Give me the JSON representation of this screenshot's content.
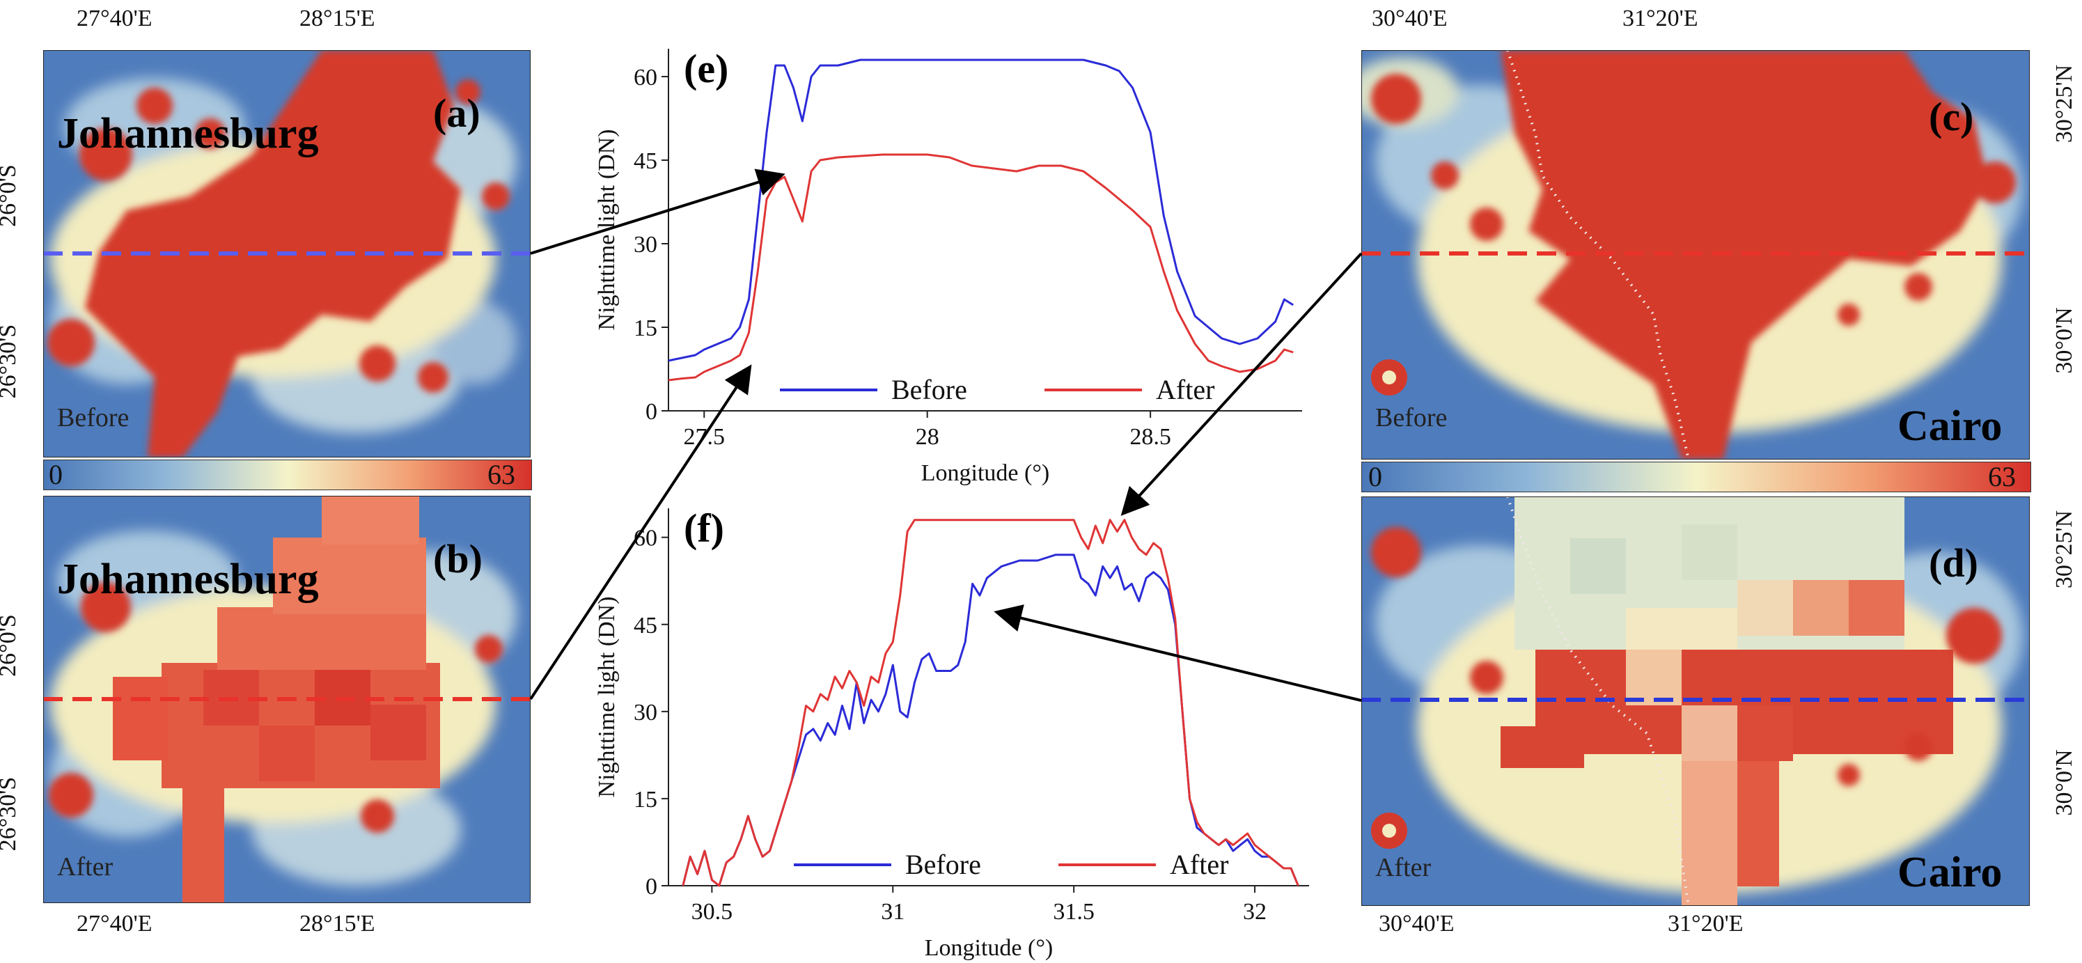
{
  "colorbar": {
    "min": "0",
    "max": "63"
  },
  "maps": {
    "a": {
      "label": "(a)",
      "city": "Johannesburg",
      "state": "Before",
      "top_ticks": [
        "27°40'E",
        "28°15'E"
      ],
      "left_ticks": [
        "26°0'S",
        "26°30'S"
      ]
    },
    "b": {
      "label": "(b)",
      "city": "Johannesburg",
      "state": "After",
      "bottom_ticks": [
        "27°40'E",
        "28°15'E"
      ],
      "left_ticks": [
        "26°0'S",
        "26°30'S"
      ]
    },
    "c": {
      "label": "(c)",
      "city": "Cairo",
      "state": "Before",
      "top_ticks": [
        "30°40'E",
        "31°20'E"
      ],
      "right_ticks": [
        "30°25'N",
        "30°0'N"
      ]
    },
    "d": {
      "label": "(d)",
      "city": "Cairo",
      "state": "After",
      "bottom_ticks": [
        "30°40'E",
        "31°20'E"
      ],
      "right_ticks": [
        "30°25'N",
        "30°0'N"
      ]
    }
  },
  "chart_data": [
    {
      "id": "e",
      "type": "line",
      "panel_label": "(e)",
      "xlabel": "Longitude (°)",
      "ylabel": "Nighttime light (DN)",
      "xlim": [
        27.42,
        28.84
      ],
      "ylim": [
        0,
        65
      ],
      "xticks": [
        27.5,
        28,
        28.5
      ],
      "xtick_labels": [
        "27.5",
        "28",
        "28.5"
      ],
      "yticks": [
        0,
        15,
        30,
        45,
        60
      ],
      "ytick_labels": [
        "0",
        "15",
        "30",
        "45",
        "60"
      ],
      "legend": [
        "Before",
        "After"
      ],
      "series": [
        {
          "name": "Before",
          "color": "#2b2bd8",
          "x": [
            27.42,
            27.45,
            27.48,
            27.5,
            27.53,
            27.56,
            27.58,
            27.6,
            27.62,
            27.64,
            27.66,
            27.68,
            27.7,
            27.72,
            27.74,
            27.76,
            27.8,
            27.85,
            28.0,
            28.2,
            28.35,
            28.4,
            28.43,
            28.46,
            28.5,
            28.53,
            28.56,
            28.6,
            28.63,
            28.66,
            28.7,
            28.74,
            28.78,
            28.8,
            28.82
          ],
          "values": [
            9,
            9.5,
            10,
            11,
            12,
            13,
            15,
            20,
            35,
            50,
            62,
            62,
            58,
            52,
            60,
            62,
            62,
            63,
            63,
            63,
            63,
            62,
            61,
            58,
            50,
            35,
            25,
            17,
            15,
            13,
            12,
            13,
            16,
            20,
            19
          ]
        },
        {
          "name": "After",
          "color": "#e03535",
          "x": [
            27.42,
            27.45,
            27.48,
            27.5,
            27.53,
            27.56,
            27.58,
            27.6,
            27.62,
            27.64,
            27.66,
            27.68,
            27.7,
            27.72,
            27.74,
            27.76,
            27.8,
            27.9,
            28.0,
            28.05,
            28.1,
            28.2,
            28.25,
            28.3,
            28.35,
            28.4,
            28.43,
            28.46,
            28.5,
            28.53,
            28.56,
            28.6,
            28.63,
            28.66,
            28.7,
            28.74,
            28.78,
            28.8,
            28.82
          ],
          "values": [
            5.5,
            5.8,
            6,
            7,
            8,
            9,
            10,
            14,
            25,
            38,
            41,
            42,
            38,
            34,
            43,
            45,
            45.5,
            46,
            46,
            45.5,
            44,
            43,
            44,
            44,
            43,
            40,
            38,
            36,
            33,
            25,
            18,
            12,
            9,
            8,
            7,
            7.5,
            9,
            11,
            10.5
          ]
        }
      ]
    },
    {
      "id": "f",
      "type": "line",
      "panel_label": "(f)",
      "xlabel": "Longitude (°)",
      "ylabel": "Nighttime light (DN)",
      "xlim": [
        30.38,
        32.15
      ],
      "ylim": [
        0,
        65
      ],
      "xticks": [
        30.5,
        31,
        31.5,
        32
      ],
      "xtick_labels": [
        "30.5",
        "31",
        "31.5",
        "32"
      ],
      "yticks": [
        0,
        15,
        30,
        45,
        60
      ],
      "ytick_labels": [
        "0",
        "15",
        "30",
        "45",
        "60"
      ],
      "legend": [
        "Before",
        "After"
      ],
      "series": [
        {
          "name": "Before",
          "color": "#2b2bd8",
          "x": [
            30.42,
            30.44,
            30.46,
            30.48,
            30.5,
            30.52,
            30.54,
            30.56,
            30.58,
            30.6,
            30.62,
            30.64,
            30.66,
            30.68,
            30.7,
            30.72,
            30.74,
            30.76,
            30.78,
            30.8,
            30.82,
            30.84,
            30.86,
            30.88,
            30.9,
            30.92,
            30.94,
            30.96,
            30.98,
            31.0,
            31.02,
            31.04,
            31.06,
            31.08,
            31.1,
            31.12,
            31.14,
            31.16,
            31.18,
            31.2,
            31.22,
            31.24,
            31.26,
            31.28,
            31.3,
            31.35,
            31.4,
            31.45,
            31.5,
            31.52,
            31.54,
            31.56,
            31.58,
            31.6,
            31.62,
            31.64,
            31.66,
            31.68,
            31.7,
            31.72,
            31.74,
            31.76,
            31.78,
            31.8,
            31.82,
            31.84,
            31.86,
            31.88,
            31.9,
            31.92,
            31.94,
            31.96,
            31.98,
            32.0,
            32.02,
            32.04,
            32.06,
            32.08,
            32.1,
            32.12
          ],
          "values": [
            0,
            5,
            2,
            6,
            1,
            0,
            4,
            5,
            8,
            12,
            8,
            5,
            6,
            10,
            14,
            18,
            22,
            26,
            27,
            25,
            28,
            26,
            31,
            27,
            35,
            28,
            32,
            30,
            33,
            38,
            30,
            29,
            35,
            39,
            40,
            37,
            37,
            37,
            38,
            42,
            52,
            50,
            53,
            54,
            55,
            56,
            56,
            57,
            57,
            53,
            52,
            50,
            55,
            53,
            55,
            51,
            52,
            49,
            53,
            54,
            53,
            51,
            45,
            30,
            15,
            10,
            9,
            8,
            7,
            8,
            6,
            7,
            8,
            6,
            5,
            5,
            4,
            3,
            3,
            0
          ]
        },
        {
          "name": "After",
          "color": "#e03535",
          "x": [
            30.42,
            30.44,
            30.46,
            30.48,
            30.5,
            30.52,
            30.54,
            30.56,
            30.58,
            30.6,
            30.62,
            30.64,
            30.66,
            30.68,
            30.7,
            30.72,
            30.74,
            30.76,
            30.78,
            30.8,
            30.82,
            30.84,
            30.86,
            30.88,
            30.9,
            30.92,
            30.94,
            30.96,
            30.98,
            31.0,
            31.02,
            31.04,
            31.06,
            31.08,
            31.1,
            31.12,
            31.14,
            31.16,
            31.18,
            31.2,
            31.22,
            31.24,
            31.26,
            31.28,
            31.3,
            31.35,
            31.4,
            31.45,
            31.5,
            31.52,
            31.54,
            31.56,
            31.58,
            31.6,
            31.62,
            31.64,
            31.66,
            31.68,
            31.7,
            31.72,
            31.74,
            31.76,
            31.78,
            31.8,
            31.82,
            31.84,
            31.86,
            31.88,
            31.9,
            31.92,
            31.94,
            31.96,
            31.98,
            32.0,
            32.02,
            32.04,
            32.06,
            32.08,
            32.1,
            32.12
          ],
          "values": [
            0,
            5,
            2,
            6,
            1,
            0,
            4,
            5,
            8,
            12,
            8,
            5,
            6,
            10,
            14,
            18,
            24,
            31,
            30,
            33,
            32,
            36,
            34,
            37,
            35,
            31,
            36,
            35,
            40,
            42,
            50,
            61,
            63,
            63,
            63,
            63,
            63,
            63,
            63,
            63,
            63,
            63,
            63,
            63,
            63,
            63,
            63,
            63,
            63,
            60,
            58,
            62,
            59,
            63,
            61,
            63,
            60,
            58,
            57,
            59,
            58,
            53,
            46,
            30,
            15,
            11,
            9,
            8,
            7,
            8,
            7,
            8,
            9,
            7,
            6,
            5,
            4,
            3,
            3,
            0
          ]
        }
      ]
    }
  ]
}
